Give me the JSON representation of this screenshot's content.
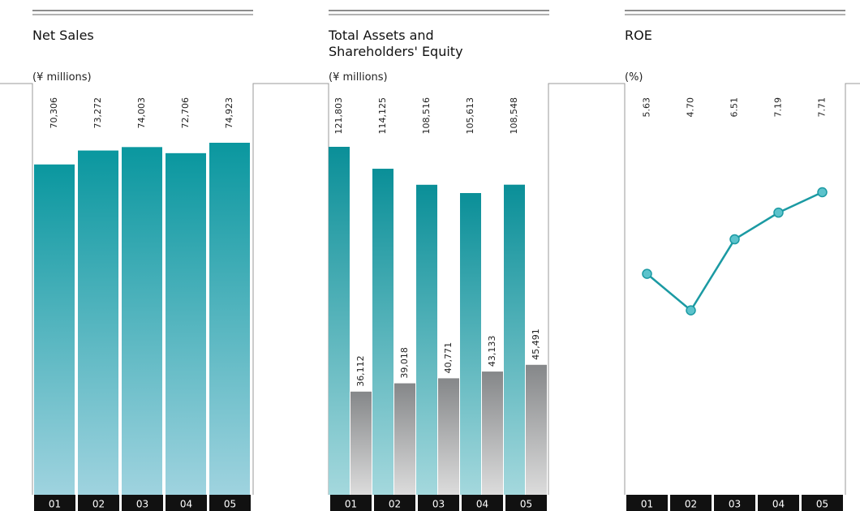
{
  "chart_data": [
    {
      "type": "bar",
      "title": "Net Sales",
      "subtitle": "(¥ millions)",
      "categories": [
        "01",
        "02",
        "03",
        "04",
        "05"
      ],
      "values": [
        70306,
        73272,
        74003,
        72706,
        74923
      ],
      "value_labels": [
        "70,306",
        "73,272",
        "74,003",
        "72,706",
        "74,923"
      ],
      "color": "#0a979f"
    },
    {
      "type": "groupbar",
      "title": "Total Assets and Shareholders' Equity",
      "subtitle": "(¥ millions)",
      "categories": [
        "01",
        "02",
        "03",
        "04",
        "05"
      ],
      "series": [
        {
          "color": "#0a8f98",
          "values": [
            121803,
            114125,
            108516,
            105613,
            108548
          ],
          "value_labels": [
            "121,803",
            "114,125",
            "108,516",
            "105,613",
            "108,548"
          ]
        },
        {
          "color": "#858789",
          "values": [
            36112,
            39018,
            40771,
            43133,
            45491
          ],
          "value_labels": [
            "36,112",
            "39,018",
            "40,771",
            "43,133",
            "45,491"
          ]
        }
      ]
    },
    {
      "type": "line",
      "title": "ROE",
      "subtitle": "(%)",
      "categories": [
        "01",
        "02",
        "03",
        "04",
        "05"
      ],
      "values": [
        5.63,
        4.7,
        6.51,
        7.19,
        7.71
      ],
      "value_labels": [
        "5.63",
        "4.70",
        "6.51",
        "7.19",
        "7.71"
      ],
      "color": "#1b9aa3"
    }
  ]
}
